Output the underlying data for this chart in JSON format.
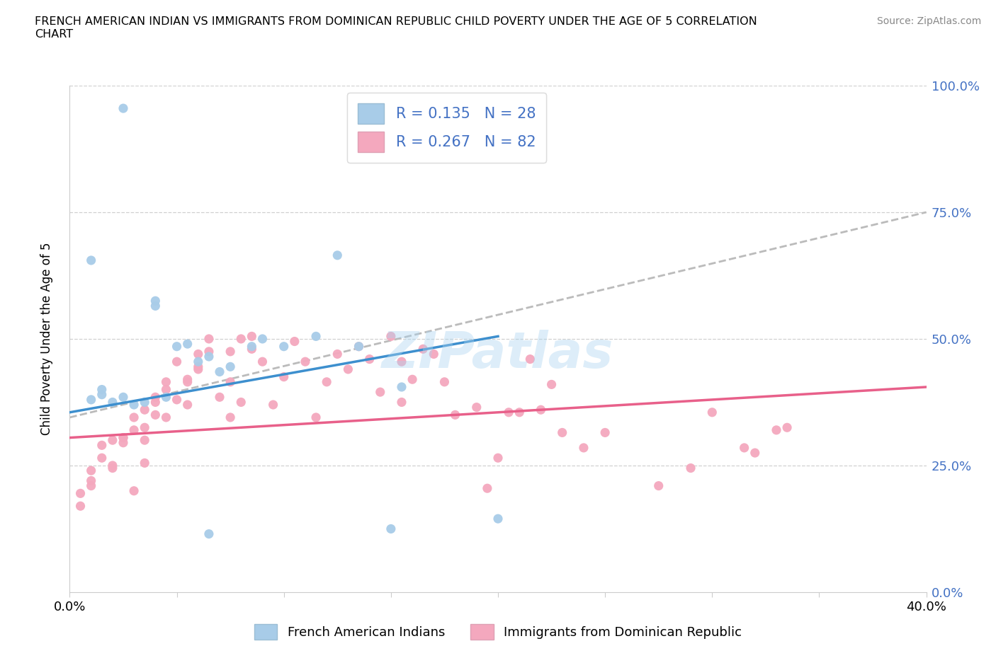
{
  "title": "FRENCH AMERICAN INDIAN VS IMMIGRANTS FROM DOMINICAN REPUBLIC CHILD POVERTY UNDER THE AGE OF 5 CORRELATION\nCHART",
  "source": "Source: ZipAtlas.com",
  "ylabel": "Child Poverty Under the Age of 5",
  "xlim": [
    0.0,
    0.4
  ],
  "ylim": [
    0.0,
    1.0
  ],
  "ytick_labels_right": [
    "0.0%",
    "25.0%",
    "50.0%",
    "75.0%",
    "100.0%"
  ],
  "yticks_right": [
    0.0,
    0.25,
    0.5,
    0.75,
    1.0
  ],
  "blue_color": "#a8cce8",
  "pink_color": "#f4a8be",
  "blue_line_color": "#3d8fce",
  "pink_line_color": "#e8608a",
  "gray_line_color": "#bbbbbb",
  "R_blue": 0.135,
  "N_blue": 28,
  "R_pink": 0.267,
  "N_pink": 82,
  "watermark": "ZIPatlas",
  "blue_regression_x0": 0.0,
  "blue_regression_y0": 0.355,
  "blue_regression_x1": 0.2,
  "blue_regression_y1": 0.505,
  "pink_regression_x0": 0.0,
  "pink_regression_y0": 0.305,
  "pink_regression_x1": 0.4,
  "pink_regression_y1": 0.405,
  "gray_regression_x0": 0.0,
  "gray_regression_y0": 0.345,
  "gray_regression_x1": 0.4,
  "gray_regression_y1": 0.75,
  "blue_scatter_x": [
    0.025,
    0.01,
    0.01,
    0.015,
    0.015,
    0.02,
    0.025,
    0.03,
    0.035,
    0.04,
    0.04,
    0.045,
    0.05,
    0.055,
    0.06,
    0.065,
    0.07,
    0.075,
    0.085,
    0.09,
    0.1,
    0.115,
    0.125,
    0.135,
    0.065,
    0.15,
    0.155,
    0.2
  ],
  "blue_scatter_y": [
    0.955,
    0.655,
    0.38,
    0.39,
    0.4,
    0.375,
    0.385,
    0.37,
    0.375,
    0.565,
    0.575,
    0.385,
    0.485,
    0.49,
    0.455,
    0.465,
    0.435,
    0.445,
    0.485,
    0.5,
    0.485,
    0.505,
    0.665,
    0.485,
    0.115,
    0.125,
    0.405,
    0.145
  ],
  "pink_scatter_x": [
    0.005,
    0.01,
    0.015,
    0.005,
    0.01,
    0.015,
    0.02,
    0.01,
    0.02,
    0.025,
    0.02,
    0.025,
    0.03,
    0.035,
    0.025,
    0.03,
    0.035,
    0.03,
    0.035,
    0.04,
    0.035,
    0.04,
    0.045,
    0.04,
    0.045,
    0.05,
    0.045,
    0.055,
    0.05,
    0.055,
    0.06,
    0.055,
    0.06,
    0.065,
    0.06,
    0.065,
    0.07,
    0.075,
    0.075,
    0.08,
    0.075,
    0.08,
    0.085,
    0.085,
    0.09,
    0.095,
    0.1,
    0.105,
    0.11,
    0.115,
    0.12,
    0.125,
    0.13,
    0.135,
    0.14,
    0.145,
    0.15,
    0.155,
    0.155,
    0.16,
    0.165,
    0.17,
    0.175,
    0.18,
    0.19,
    0.195,
    0.2,
    0.205,
    0.21,
    0.215,
    0.22,
    0.225,
    0.23,
    0.24,
    0.25,
    0.275,
    0.29,
    0.3,
    0.315,
    0.32,
    0.33,
    0.335
  ],
  "pink_scatter_y": [
    0.195,
    0.24,
    0.29,
    0.17,
    0.22,
    0.265,
    0.3,
    0.21,
    0.25,
    0.305,
    0.245,
    0.305,
    0.2,
    0.255,
    0.295,
    0.32,
    0.36,
    0.345,
    0.3,
    0.375,
    0.325,
    0.385,
    0.415,
    0.35,
    0.4,
    0.455,
    0.345,
    0.37,
    0.38,
    0.415,
    0.44,
    0.42,
    0.47,
    0.5,
    0.445,
    0.475,
    0.385,
    0.415,
    0.345,
    0.375,
    0.475,
    0.5,
    0.48,
    0.505,
    0.455,
    0.37,
    0.425,
    0.495,
    0.455,
    0.345,
    0.415,
    0.47,
    0.44,
    0.485,
    0.46,
    0.395,
    0.505,
    0.375,
    0.455,
    0.42,
    0.48,
    0.47,
    0.415,
    0.35,
    0.365,
    0.205,
    0.265,
    0.355,
    0.355,
    0.46,
    0.36,
    0.41,
    0.315,
    0.285,
    0.315,
    0.21,
    0.245,
    0.355,
    0.285,
    0.275,
    0.32,
    0.325
  ]
}
